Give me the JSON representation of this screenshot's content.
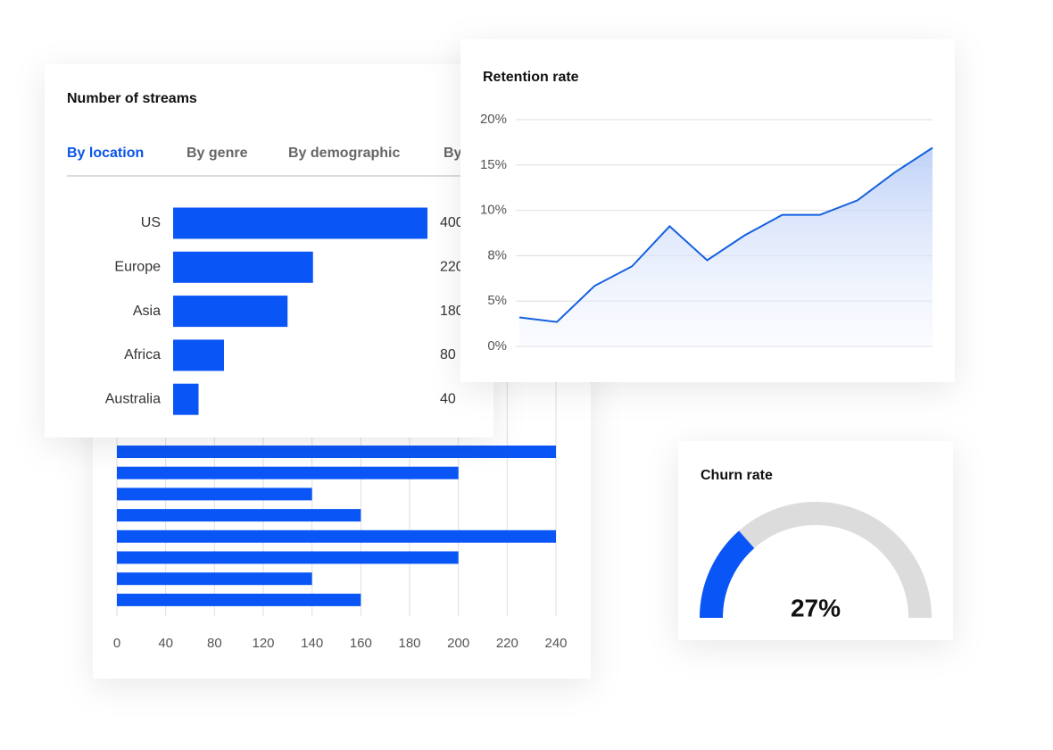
{
  "chart_data": [
    {
      "type": "hbar",
      "categories": [
        null,
        null,
        null,
        null,
        null,
        null,
        null,
        null
      ],
      "values": [
        240,
        200,
        140,
        160,
        240,
        200,
        140,
        160
      ],
      "color": "#0a55f5",
      "xlim": [
        0,
        240
      ],
      "xticks": [
        0,
        40,
        80,
        120,
        140,
        160,
        180,
        200,
        220,
        240
      ],
      "grid": true
    },
    {
      "type": "hbar",
      "title": "Number of streams",
      "tabs": [
        "By location",
        "By genre",
        "By demographic",
        "By"
      ],
      "categories": [
        "US",
        "Europe",
        "Asia",
        "Africa",
        "Australia"
      ],
      "values": [
        400,
        220,
        180,
        80,
        40
      ],
      "color": "#0a55f5",
      "xlim": [
        0,
        400
      ]
    },
    {
      "type": "area-line",
      "title": "Retention rate",
      "categories": [
        null,
        null,
        null,
        null,
        null,
        null,
        null,
        null,
        null,
        null,
        null,
        null
      ],
      "values": [
        3.2,
        2.7,
        6.0,
        7.3,
        9.3,
        7.7,
        8.9,
        9.8,
        9.8,
        11.1,
        14.2,
        16.9
      ],
      "color": "#1460e0",
      "ylim": [
        0,
        20
      ],
      "yticks": [
        {
          "value": 0,
          "label": "0%"
        },
        {
          "value": 5,
          "label": "5%"
        },
        {
          "value": 8,
          "label": "8%"
        },
        {
          "value": 10,
          "label": "10%"
        },
        {
          "value": 15,
          "label": "15%"
        },
        {
          "value": 20,
          "label": "20%"
        }
      ],
      "grid": true
    },
    {
      "type": "gauge",
      "title": "Churn rate",
      "value": 27,
      "value_label": "27%",
      "lim": [
        0,
        100
      ],
      "color": "#0a55f5",
      "track_color": "#dcdcdc"
    }
  ]
}
